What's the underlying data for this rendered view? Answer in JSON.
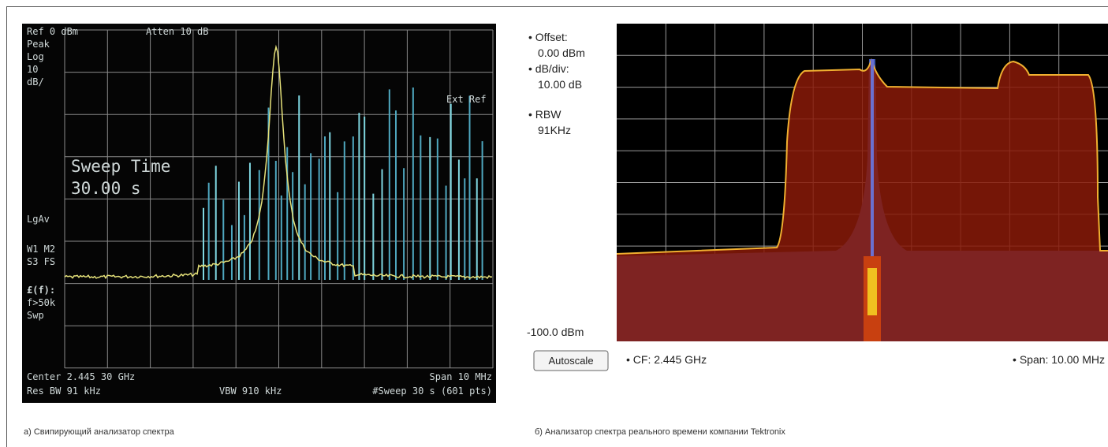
{
  "left_panel": {
    "top": [
      "Ref 0 dBm",
      "Atten 10 dB"
    ],
    "side": [
      "Peak",
      "Log",
      "10",
      "dB/",
      "LgAv",
      "W1  M2",
      "S3  FS",
      "£(f):",
      "f>50k",
      "Swp"
    ],
    "ext_ref": "Ext Ref",
    "overlay": [
      "Sweep Time",
      "30.00  s"
    ],
    "bottom": [
      "Center 2.445 30 GHz",
      "Span 10 MHz",
      "Res BW 91 kHz",
      "VBW 910 kHz",
      "#Sweep 30 s (601 pts)"
    ],
    "caption": "а) Свипирующий анализатор спектра"
  },
  "right_panel": {
    "side": [
      "• Offset:",
      "0.00 dBm",
      "• dB/div:",
      "10.00 dB",
      "• RBW",
      "91KHz"
    ],
    "reference": "-100.0 dBm",
    "button": "Autoscale",
    "cf": "• CF: 2.445 GHz",
    "span": "• Span: 10.00 MHz",
    "caption": "б) Анализатор спектра реального времени компании Tektronix"
  }
}
